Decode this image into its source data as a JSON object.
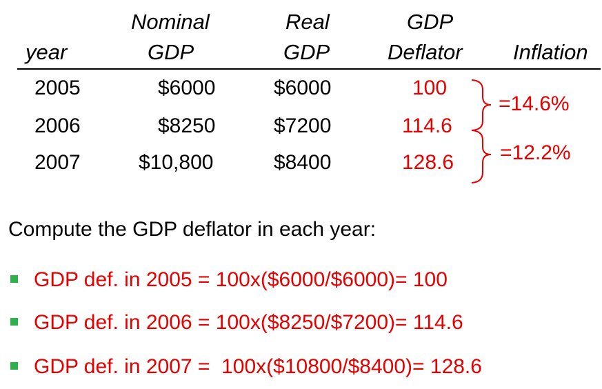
{
  "table": {
    "headers": {
      "year": "year",
      "nominal_line1": "Nominal",
      "nominal_line2": "GDP",
      "real_line1": "Real",
      "real_line2": "GDP",
      "deflator_line1": "GDP",
      "deflator_line2": "Deflator",
      "inflation": "Inflation"
    },
    "rows": [
      {
        "year": "2005",
        "nominal": "$6000",
        "real": "$6000",
        "deflator": "100"
      },
      {
        "year": "2006",
        "nominal": "$8250",
        "real": "$7200",
        "deflator": "114.6"
      },
      {
        "year": "2007",
        "nominal": "$10,800",
        "real": "$8400",
        "deflator": "128.6"
      }
    ],
    "inflation": [
      "=14.6%",
      "=12.2%"
    ]
  },
  "prompt": "Compute the GDP deflator in each year:",
  "bullets": [
    "GDP def. in 2005 = 100x($6000/$6000)= 100",
    "GDP def. in 2006 = 100x($8250/$7200)= 114.6",
    "GDP def. in 2007 =  100x($10800/$8400)= 128.6"
  ],
  "colors": {
    "accent_red": "#e60000",
    "bullet_green": "#2db24a",
    "text": "#000000"
  },
  "icons": {
    "brace": "right-curly-brace-icon",
    "bullet": "square-bullet-icon"
  }
}
